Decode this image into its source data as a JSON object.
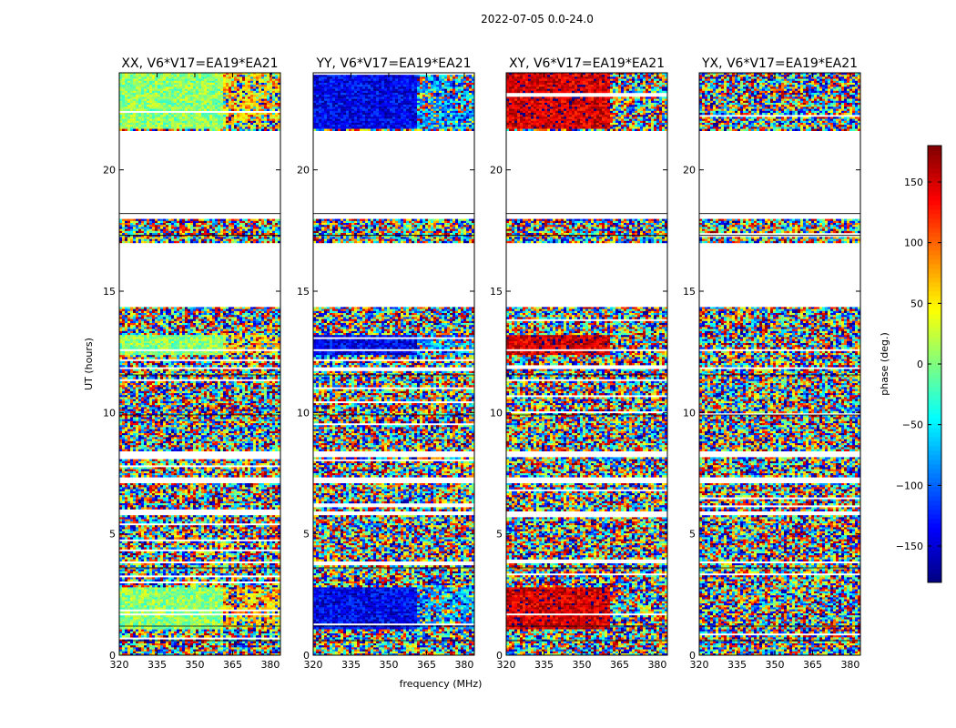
{
  "chart_data": {
    "type": "heatmap",
    "suptitle": "2022-07-05 0.0-24.0",
    "xlabel": "frequency (MHz)",
    "ylabel": "UT (hours)",
    "xlim": [
      320,
      384
    ],
    "ylim": [
      0,
      24
    ],
    "xticks": [
      320,
      335,
      350,
      365,
      380
    ],
    "yticks": [
      0,
      5,
      10,
      15,
      20
    ],
    "panels": [
      {
        "title": "XX, V6*V17=EA19*EA21",
        "corr": "XX",
        "coherent_low_band_phase": 5,
        "coherent_high_band_phase": 60
      },
      {
        "title": "YY, V6*V17=EA19*EA21",
        "corr": "YY",
        "coherent_low_band_phase": -140,
        "coherent_high_band_phase": -80
      },
      {
        "title": "XY, V6*V17=EA19*EA21",
        "corr": "XY",
        "coherent_low_band_phase": 150,
        "coherent_high_band_phase": null
      },
      {
        "title": "YX, V6*V17=EA19*EA21",
        "corr": "YX",
        "coherent_low_band_phase": null,
        "coherent_high_band_phase": null
      }
    ],
    "coherent_time_ranges_hours": [
      [
        1.1,
        2.8
      ],
      [
        12.4,
        13.2
      ],
      [
        21.7,
        24.0
      ]
    ],
    "band_edge_mhz": 361,
    "data_gaps_hours": [
      [
        14.3,
        17.0
      ],
      [
        17.8,
        21.6
      ],
      [
        8.4,
        8.1
      ],
      [
        7.0,
        7.3
      ]
    ],
    "colorbar": {
      "label": "phase (deg.)",
      "range": [
        -180,
        180
      ],
      "ticks": [
        -150,
        -100,
        -50,
        0,
        50,
        100,
        150
      ],
      "tick_labels": [
        "−150",
        "−100",
        "−50",
        "0",
        "50",
        "100",
        "150"
      ],
      "colormap": "jet"
    }
  }
}
